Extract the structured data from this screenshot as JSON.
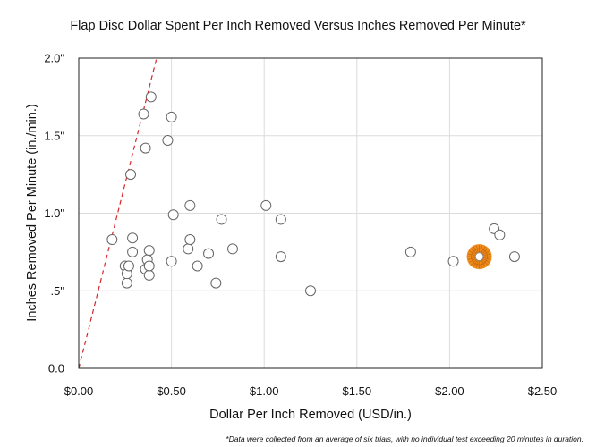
{
  "chart_data": {
    "type": "scatter",
    "title": "Flap Disc Dollar Spent Per Inch Removed Versus Inches Removed Per Minute*",
    "xlabel": "Dollar Per Inch Removed (USD/in.)",
    "ylabel": "Inches Removed Per Minute (in./min.)",
    "xlim": [
      0,
      2.5
    ],
    "ylim": [
      0,
      2.0
    ],
    "x_ticks": [
      0,
      0.5,
      1.0,
      1.5,
      2.0,
      2.5
    ],
    "x_tick_labels": [
      "$0.00",
      "$0.50",
      "$1.00",
      "$1.50",
      "$2.00",
      "$2.50"
    ],
    "y_ticks": [
      0,
      0.5,
      1.0,
      1.5,
      2.0
    ],
    "y_tick_labels": [
      "0.0",
      ".5\"",
      "1.0\"",
      "1.5\"",
      "2.0\""
    ],
    "grid": true,
    "footnote": "*Data were collected from an average of six trials, with no individual test exceeding 20 minutes in duration.",
    "reference_line": {
      "style": "dashed",
      "color": "#d62728",
      "points": [
        [
          0,
          0
        ],
        [
          0.42,
          2.0
        ]
      ]
    },
    "highlight": {
      "x": 2.16,
      "y": 0.72,
      "color": "#f08c1e"
    },
    "points": [
      {
        "x": 0.18,
        "y": 0.83
      },
      {
        "x": 0.25,
        "y": 0.66
      },
      {
        "x": 0.26,
        "y": 0.55
      },
      {
        "x": 0.26,
        "y": 0.61
      },
      {
        "x": 0.27,
        "y": 0.66
      },
      {
        "x": 0.28,
        "y": 1.25
      },
      {
        "x": 0.29,
        "y": 0.84
      },
      {
        "x": 0.29,
        "y": 0.75
      },
      {
        "x": 0.35,
        "y": 1.64
      },
      {
        "x": 0.36,
        "y": 1.42
      },
      {
        "x": 0.36,
        "y": 0.64
      },
      {
        "x": 0.37,
        "y": 0.7
      },
      {
        "x": 0.38,
        "y": 0.76
      },
      {
        "x": 0.38,
        "y": 0.6
      },
      {
        "x": 0.38,
        "y": 0.66
      },
      {
        "x": 0.39,
        "y": 1.75
      },
      {
        "x": 0.48,
        "y": 1.47
      },
      {
        "x": 0.5,
        "y": 1.62
      },
      {
        "x": 0.5,
        "y": 0.69
      },
      {
        "x": 0.51,
        "y": 0.99
      },
      {
        "x": 0.59,
        "y": 0.77
      },
      {
        "x": 0.6,
        "y": 0.83
      },
      {
        "x": 0.6,
        "y": 1.05
      },
      {
        "x": 0.64,
        "y": 0.66
      },
      {
        "x": 0.7,
        "y": 0.74
      },
      {
        "x": 0.74,
        "y": 0.55
      },
      {
        "x": 0.77,
        "y": 0.96
      },
      {
        "x": 0.83,
        "y": 0.77
      },
      {
        "x": 1.01,
        "y": 1.05
      },
      {
        "x": 1.09,
        "y": 0.96
      },
      {
        "x": 1.09,
        "y": 0.72
      },
      {
        "x": 1.25,
        "y": 0.5
      },
      {
        "x": 1.79,
        "y": 0.75
      },
      {
        "x": 2.02,
        "y": 0.69
      },
      {
        "x": 2.24,
        "y": 0.9
      },
      {
        "x": 2.27,
        "y": 0.86
      },
      {
        "x": 2.35,
        "y": 0.72
      }
    ]
  }
}
